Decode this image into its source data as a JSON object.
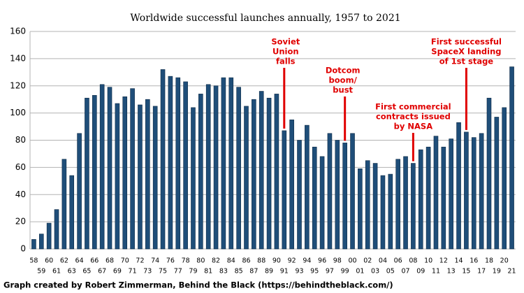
{
  "chart_data": {
    "type": "bar",
    "title": "Worldwide successful launches annually, 1957 to 2021",
    "footer": "Graph created by Robert Zimmerman, Behind the Black (https://behindtheblack.com/)",
    "categories": [
      "58",
      "59",
      "60",
      "61",
      "62",
      "63",
      "64",
      "65",
      "66",
      "67",
      "68",
      "69",
      "70",
      "71",
      "72",
      "73",
      "74",
      "75",
      "76",
      "77",
      "78",
      "79",
      "80",
      "81",
      "82",
      "83",
      "84",
      "85",
      "86",
      "87",
      "88",
      "89",
      "90",
      "91",
      "92",
      "93",
      "94",
      "95",
      "96",
      "97",
      "98",
      "99",
      "00",
      "01",
      "02",
      "03",
      "04",
      "05",
      "06",
      "07",
      "08",
      "09",
      "10",
      "11",
      "12",
      "13",
      "14",
      "15",
      "16",
      "17",
      "18",
      "19",
      "20",
      "21"
    ],
    "values": [
      7,
      11,
      19,
      29,
      66,
      54,
      85,
      111,
      113,
      121,
      119,
      107,
      112,
      118,
      106,
      110,
      105,
      132,
      127,
      126,
      123,
      104,
      114,
      121,
      120,
      126,
      126,
      119,
      105,
      110,
      116,
      111,
      114,
      87,
      95,
      80,
      91,
      75,
      68,
      85,
      80,
      78,
      85,
      59,
      65,
      63,
      54,
      55,
      66,
      68,
      63,
      73,
      75,
      83,
      75,
      81,
      93,
      86,
      82,
      85,
      111,
      97,
      104,
      134
    ],
    "color": "#1f4e79",
    "ylim": [
      0,
      160
    ],
    "yticks": [
      0,
      20,
      40,
      60,
      80,
      100,
      120,
      140,
      160
    ],
    "grid": true,
    "annotations": [
      {
        "lines": [
          "Soviet",
          "Union",
          "falls"
        ],
        "category": "91",
        "color": "#e00000"
      },
      {
        "lines": [
          "Dotcom",
          "boom/",
          "bust"
        ],
        "category": "99",
        "color": "#e00000"
      },
      {
        "lines": [
          "First commercial",
          "contracts issued",
          "by NASA"
        ],
        "category": "08",
        "color": "#e00000"
      },
      {
        "lines": [
          "First successful",
          "SpaceX landing",
          "of 1st stage"
        ],
        "category": "15",
        "color": "#e00000"
      }
    ]
  }
}
